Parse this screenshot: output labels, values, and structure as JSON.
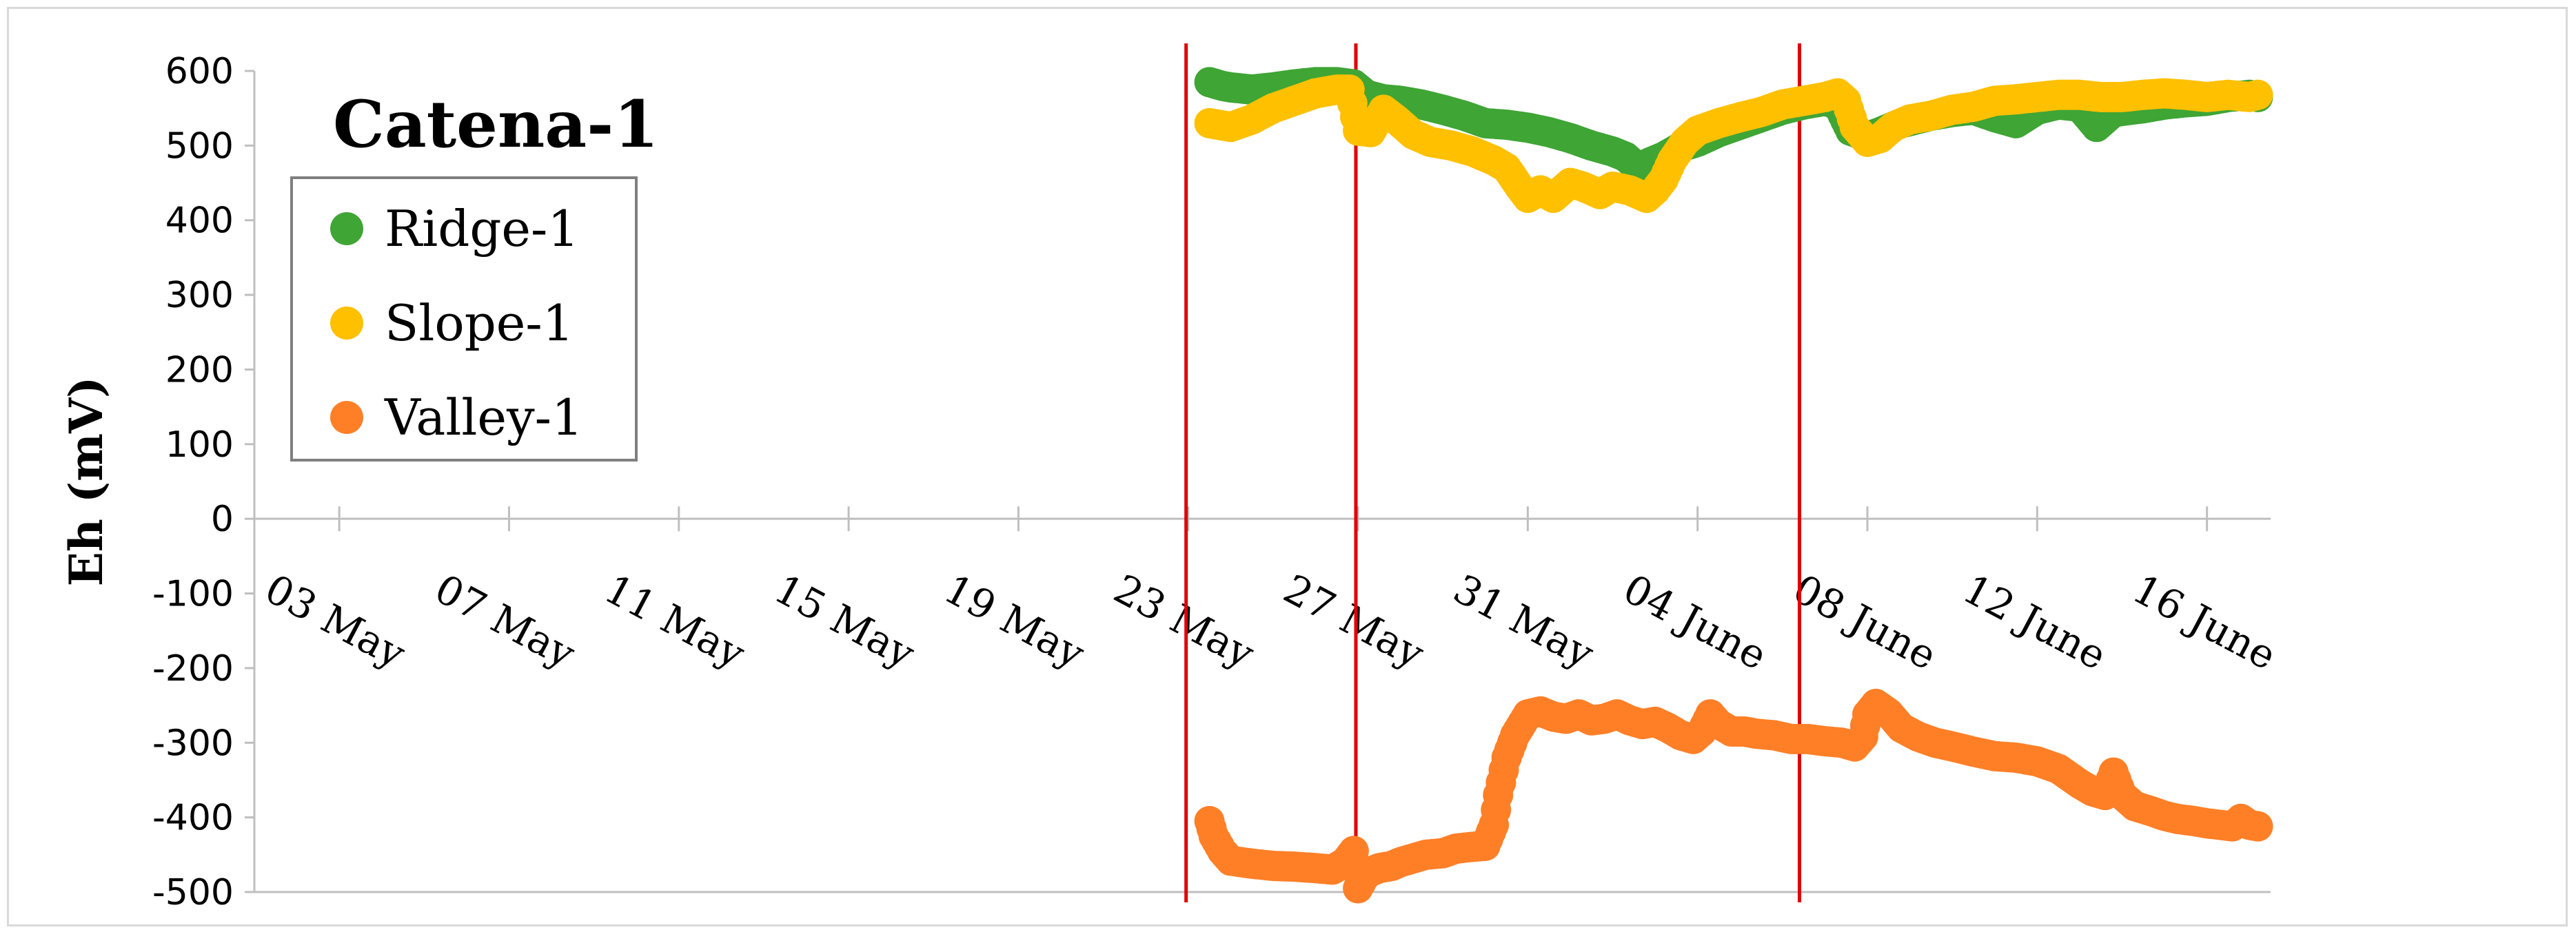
{
  "chart_data": {
    "type": "scatter",
    "title": "Catena-1",
    "ylabel": "Eh (mV)",
    "xlabel": "",
    "ylim": [
      -500,
      600
    ],
    "yticks": [
      "600",
      "500",
      "400",
      "300",
      "200",
      "100",
      "0",
      "-100",
      "-200",
      "-300",
      "-400",
      "-500"
    ],
    "x_start": "01 May",
    "xlim_days": [
      0,
      47.5
    ],
    "xticks": [
      {
        "day": 2,
        "label": "03 May"
      },
      {
        "day": 6,
        "label": "07 May"
      },
      {
        "day": 10,
        "label": "11 May"
      },
      {
        "day": 14,
        "label": "15 May"
      },
      {
        "day": 18,
        "label": "19 May"
      },
      {
        "day": 22,
        "label": "23 May"
      },
      {
        "day": 26,
        "label": "27 May"
      },
      {
        "day": 30,
        "label": "31 May"
      },
      {
        "day": 34,
        "label": "04 June"
      },
      {
        "day": 38,
        "label": "08 June"
      },
      {
        "day": 42,
        "label": "12 June"
      },
      {
        "day": 46,
        "label": "16 June"
      }
    ],
    "vlines_days": [
      21.95,
      25.95,
      36.4
    ],
    "grid": false,
    "legend": "upper-left",
    "series": [
      {
        "name": "Ridge-1",
        "color": "#3fa535",
        "points": [
          [
            22.5,
            585
          ],
          [
            22.8,
            580
          ],
          [
            23.0,
            578
          ],
          [
            23.5,
            575
          ],
          [
            24.0,
            578
          ],
          [
            24.5,
            582
          ],
          [
            25.0,
            585
          ],
          [
            25.5,
            585
          ],
          [
            25.9,
            582
          ],
          [
            26.2,
            568
          ],
          [
            26.6,
            562
          ],
          [
            27.0,
            560
          ],
          [
            27.5,
            555
          ],
          [
            28.0,
            548
          ],
          [
            28.5,
            540
          ],
          [
            29.0,
            530
          ],
          [
            29.5,
            528
          ],
          [
            30.0,
            524
          ],
          [
            30.5,
            518
          ],
          [
            31.0,
            510
          ],
          [
            31.5,
            500
          ],
          [
            32.0,
            492
          ],
          [
            32.3,
            485
          ],
          [
            32.6,
            470
          ],
          [
            32.9,
            478
          ],
          [
            33.2,
            485
          ],
          [
            33.6,
            498
          ],
          [
            34.0,
            505
          ],
          [
            34.5,
            518
          ],
          [
            35.0,
            528
          ],
          [
            35.5,
            538
          ],
          [
            36.0,
            548
          ],
          [
            36.5,
            555
          ],
          [
            37.0,
            560
          ],
          [
            37.3,
            555
          ],
          [
            37.6,
            520
          ],
          [
            38.0,
            512
          ],
          [
            38.3,
            518
          ],
          [
            38.8,
            530
          ],
          [
            39.5,
            540
          ],
          [
            40.0,
            545
          ],
          [
            40.5,
            548
          ],
          [
            41.0,
            538
          ],
          [
            41.5,
            530
          ],
          [
            42.0,
            548
          ],
          [
            42.5,
            555
          ],
          [
            43.0,
            552
          ],
          [
            43.4,
            525
          ],
          [
            43.8,
            545
          ],
          [
            44.5,
            550
          ],
          [
            45.0,
            555
          ],
          [
            45.5,
            558
          ],
          [
            46.0,
            560
          ],
          [
            46.5,
            565
          ],
          [
            47.0,
            568
          ],
          [
            47.2,
            565
          ]
        ]
      },
      {
        "name": "Slope-1",
        "color": "#ffc000",
        "points": [
          [
            22.5,
            530
          ],
          [
            23.0,
            525
          ],
          [
            23.5,
            535
          ],
          [
            24.0,
            550
          ],
          [
            24.5,
            560
          ],
          [
            25.0,
            570
          ],
          [
            25.5,
            575
          ],
          [
            25.8,
            575
          ],
          [
            26.0,
            520
          ],
          [
            26.3,
            518
          ],
          [
            26.6,
            548
          ],
          [
            26.9,
            535
          ],
          [
            27.3,
            515
          ],
          [
            27.7,
            505
          ],
          [
            28.2,
            500
          ],
          [
            28.7,
            492
          ],
          [
            29.2,
            480
          ],
          [
            29.5,
            470
          ],
          [
            29.8,
            445
          ],
          [
            30.0,
            430
          ],
          [
            30.3,
            440
          ],
          [
            30.6,
            430
          ],
          [
            31.0,
            450
          ],
          [
            31.3,
            445
          ],
          [
            31.7,
            435
          ],
          [
            32.0,
            445
          ],
          [
            32.4,
            440
          ],
          [
            32.8,
            430
          ],
          [
            33.0,
            440
          ],
          [
            33.2,
            455
          ],
          [
            33.4,
            480
          ],
          [
            33.7,
            505
          ],
          [
            34.0,
            520
          ],
          [
            34.5,
            530
          ],
          [
            35.0,
            538
          ],
          [
            35.5,
            545
          ],
          [
            36.0,
            555
          ],
          [
            36.5,
            560
          ],
          [
            37.0,
            565
          ],
          [
            37.3,
            570
          ],
          [
            37.5,
            560
          ],
          [
            37.7,
            525
          ],
          [
            38.0,
            505
          ],
          [
            38.3,
            510
          ],
          [
            38.6,
            525
          ],
          [
            39.0,
            535
          ],
          [
            39.5,
            540
          ],
          [
            40.0,
            548
          ],
          [
            40.5,
            552
          ],
          [
            41.0,
            560
          ],
          [
            41.5,
            562
          ],
          [
            42.0,
            565
          ],
          [
            42.5,
            568
          ],
          [
            43.0,
            568
          ],
          [
            43.5,
            565
          ],
          [
            44.0,
            565
          ],
          [
            44.5,
            568
          ],
          [
            45.0,
            570
          ],
          [
            45.5,
            568
          ],
          [
            46.0,
            565
          ],
          [
            46.5,
            568
          ],
          [
            47.0,
            565
          ],
          [
            47.2,
            568
          ]
        ]
      },
      {
        "name": "Valley-1",
        "color": "#ff7f27",
        "points": [
          [
            22.5,
            -405
          ],
          [
            22.6,
            -425
          ],
          [
            22.8,
            -445
          ],
          [
            23.0,
            -458
          ],
          [
            23.5,
            -462
          ],
          [
            24.0,
            -465
          ],
          [
            24.5,
            -466
          ],
          [
            25.0,
            -468
          ],
          [
            25.4,
            -470
          ],
          [
            25.7,
            -460
          ],
          [
            25.9,
            -445
          ],
          [
            26.0,
            -495
          ],
          [
            26.2,
            -475
          ],
          [
            26.5,
            -468
          ],
          [
            26.8,
            -465
          ],
          [
            27.0,
            -460
          ],
          [
            27.3,
            -455
          ],
          [
            27.6,
            -450
          ],
          [
            28.0,
            -448
          ],
          [
            28.3,
            -442
          ],
          [
            28.6,
            -440
          ],
          [
            29.0,
            -438
          ],
          [
            29.2,
            -410
          ],
          [
            29.3,
            -370
          ],
          [
            29.5,
            -320
          ],
          [
            29.7,
            -290
          ],
          [
            30.0,
            -262
          ],
          [
            30.3,
            -258
          ],
          [
            30.6,
            -265
          ],
          [
            30.9,
            -268
          ],
          [
            31.2,
            -262
          ],
          [
            31.5,
            -270
          ],
          [
            31.8,
            -268
          ],
          [
            32.1,
            -262
          ],
          [
            32.4,
            -270
          ],
          [
            32.7,
            -275
          ],
          [
            33.0,
            -272
          ],
          [
            33.3,
            -280
          ],
          [
            33.6,
            -290
          ],
          [
            33.9,
            -295
          ],
          [
            34.1,
            -285
          ],
          [
            34.3,
            -262
          ],
          [
            34.5,
            -275
          ],
          [
            34.8,
            -285
          ],
          [
            35.1,
            -285
          ],
          [
            35.4,
            -288
          ],
          [
            35.8,
            -290
          ],
          [
            36.2,
            -295
          ],
          [
            36.6,
            -295
          ],
          [
            37.0,
            -298
          ],
          [
            37.4,
            -300
          ],
          [
            37.7,
            -305
          ],
          [
            37.9,
            -292
          ],
          [
            38.0,
            -262
          ],
          [
            38.2,
            -248
          ],
          [
            38.5,
            -260
          ],
          [
            38.8,
            -280
          ],
          [
            39.2,
            -292
          ],
          [
            39.6,
            -300
          ],
          [
            40.0,
            -305
          ],
          [
            40.5,
            -312
          ],
          [
            41.0,
            -318
          ],
          [
            41.5,
            -320
          ],
          [
            42.0,
            -325
          ],
          [
            42.5,
            -335
          ],
          [
            43.0,
            -355
          ],
          [
            43.3,
            -365
          ],
          [
            43.6,
            -370
          ],
          [
            43.8,
            -340
          ],
          [
            44.0,
            -370
          ],
          [
            44.3,
            -385
          ],
          [
            44.7,
            -392
          ],
          [
            45.0,
            -398
          ],
          [
            45.3,
            -402
          ],
          [
            45.7,
            -405
          ],
          [
            46.0,
            -408
          ],
          [
            46.3,
            -410
          ],
          [
            46.6,
            -412
          ],
          [
            46.8,
            -402
          ],
          [
            47.0,
            -410
          ],
          [
            47.2,
            -412
          ]
        ]
      }
    ]
  }
}
